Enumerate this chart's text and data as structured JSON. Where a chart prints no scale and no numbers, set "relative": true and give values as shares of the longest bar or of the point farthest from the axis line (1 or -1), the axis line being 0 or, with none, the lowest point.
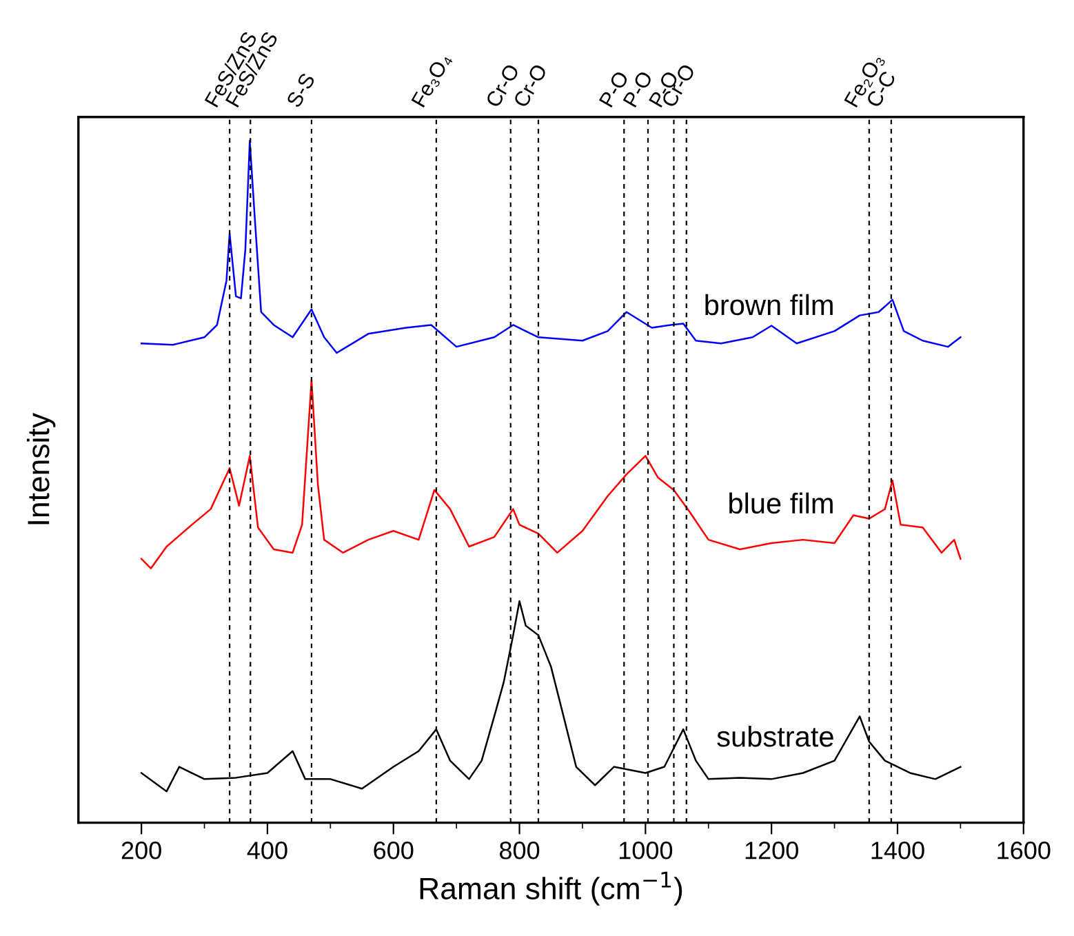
{
  "chart_data": {
    "type": "line",
    "relative": true,
    "xlabel": "Raman shift (cm$^{−1}$)",
    "ylabel": "Intensity",
    "xlim": [
      100,
      1600
    ],
    "xticks": [
      200,
      {
        "value": 300,
        "label": null
      },
      400,
      {
        "value": 500,
        "label": null
      },
      600,
      {
        "value": 700,
        "label": null
      },
      800,
      {
        "value": 900,
        "label": null
      },
      1000,
      {
        "value": 1100,
        "label": null
      },
      1200,
      {
        "value": 1300,
        "label": null
      },
      1400,
      {
        "value": 1500,
        "label": null
      },
      1600
    ],
    "grid": false,
    "line_style": "solid",
    "series": [
      {
        "name": "brown film",
        "color": "#0000ff",
        "x": [
          200,
          250,
          300,
          320,
          335,
          340,
          350,
          358,
          365,
          372,
          380,
          390,
          410,
          440,
          470,
          490,
          510,
          560,
          620,
          660,
          700,
          760,
          790,
          830,
          900,
          940,
          970,
          1010,
          1040,
          1060,
          1080,
          1120,
          1170,
          1200,
          1240,
          1300,
          1340,
          1370,
          1392,
          1410,
          1440,
          1480,
          1500
        ],
        "values": [
          0.703,
          0.701,
          0.712,
          0.73,
          0.795,
          0.864,
          0.772,
          0.769,
          0.841,
          1.0,
          0.886,
          0.749,
          0.73,
          0.712,
          0.753,
          0.712,
          0.689,
          0.717,
          0.726,
          0.73,
          0.698,
          0.712,
          0.73,
          0.712,
          0.707,
          0.721,
          0.749,
          0.726,
          0.73,
          0.732,
          0.707,
          0.703,
          0.712,
          0.729,
          0.703,
          0.721,
          0.744,
          0.749,
          0.767,
          0.721,
          0.707,
          0.698,
          0.712
        ]
      },
      {
        "name": "blue film",
        "color": "#ff0000",
        "x": [
          200,
          215,
          240,
          280,
          310,
          340,
          355,
          372,
          385,
          410,
          440,
          455,
          470,
          480,
          490,
          520,
          560,
          600,
          640,
          665,
          690,
          720,
          760,
          790,
          800,
          830,
          860,
          900,
          940,
          970,
          1000,
          1020,
          1045,
          1070,
          1100,
          1150,
          1200,
          1250,
          1300,
          1330,
          1355,
          1380,
          1392,
          1405,
          1440,
          1470,
          1490,
          1500
        ],
        "values": [
          0.387,
          0.373,
          0.405,
          0.437,
          0.46,
          0.52,
          0.465,
          0.538,
          0.433,
          0.401,
          0.396,
          0.437,
          0.649,
          0.497,
          0.415,
          0.396,
          0.415,
          0.428,
          0.415,
          0.488,
          0.46,
          0.405,
          0.419,
          0.46,
          0.437,
          0.424,
          0.396,
          0.428,
          0.479,
          0.511,
          0.538,
          0.506,
          0.488,
          0.456,
          0.415,
          0.401,
          0.41,
          0.415,
          0.41,
          0.451,
          0.446,
          0.46,
          0.502,
          0.437,
          0.433,
          0.396,
          0.415,
          0.387
        ]
      },
      {
        "name": "substrate",
        "color": "#000000",
        "x": [
          200,
          240,
          260,
          300,
          350,
          400,
          440,
          460,
          500,
          550,
          600,
          640,
          668,
          690,
          720,
          740,
          760,
          775,
          790,
          800,
          810,
          830,
          850,
          870,
          890,
          920,
          950,
          1000,
          1030,
          1060,
          1080,
          1100,
          1150,
          1200,
          1250,
          1300,
          1340,
          1355,
          1380,
          1420,
          1460,
          1500
        ],
        "values": [
          0.073,
          0.046,
          0.082,
          0.064,
          0.066,
          0.073,
          0.105,
          0.064,
          0.064,
          0.05,
          0.082,
          0.105,
          0.137,
          0.091,
          0.064,
          0.091,
          0.156,
          0.206,
          0.275,
          0.325,
          0.289,
          0.275,
          0.229,
          0.156,
          0.082,
          0.055,
          0.082,
          0.073,
          0.082,
          0.137,
          0.091,
          0.064,
          0.066,
          0.064,
          0.073,
          0.091,
          0.156,
          0.119,
          0.091,
          0.073,
          0.064,
          0.082
        ]
      }
    ],
    "ref_lines": [
      {
        "axis": "x",
        "value": 340,
        "label": "FeS/ZnS",
        "color": "#000000",
        "line_style": "dashed"
      },
      {
        "axis": "x",
        "value": 373,
        "label": "FeS/ZnS",
        "color": "#000000",
        "line_style": "dashed"
      },
      {
        "axis": "x",
        "value": 470,
        "label": "S-S",
        "color": "#000000",
        "line_style": "dashed"
      },
      {
        "axis": "x",
        "value": 668,
        "label": "Fe₃O₄",
        "color": "#000000",
        "line_style": "dashed"
      },
      {
        "axis": "x",
        "value": 786,
        "label": "Cr-O",
        "color": "#000000",
        "line_style": "dashed"
      },
      {
        "axis": "x",
        "value": 830,
        "label": "Cr-O",
        "color": "#000000",
        "line_style": "dashed"
      },
      {
        "axis": "x",
        "value": 966,
        "label": "P-O",
        "color": "#000000",
        "line_style": "dashed"
      },
      {
        "axis": "x",
        "value": 1004,
        "label": "P-O",
        "color": "#000000",
        "line_style": "dashed"
      },
      {
        "axis": "x",
        "value": 1045,
        "label": "P-O",
        "color": "#000000",
        "line_style": "dashed"
      },
      {
        "axis": "x",
        "value": 1065,
        "label": "Cr-O",
        "color": "#000000",
        "line_style": "dashed"
      },
      {
        "axis": "x",
        "value": 1355,
        "label": "Fe₂O₃",
        "color": "#000000",
        "line_style": "dashed"
      },
      {
        "axis": "x",
        "value": 1390,
        "label": "C-C",
        "color": "#000000",
        "line_style": "dashed"
      }
    ]
  }
}
